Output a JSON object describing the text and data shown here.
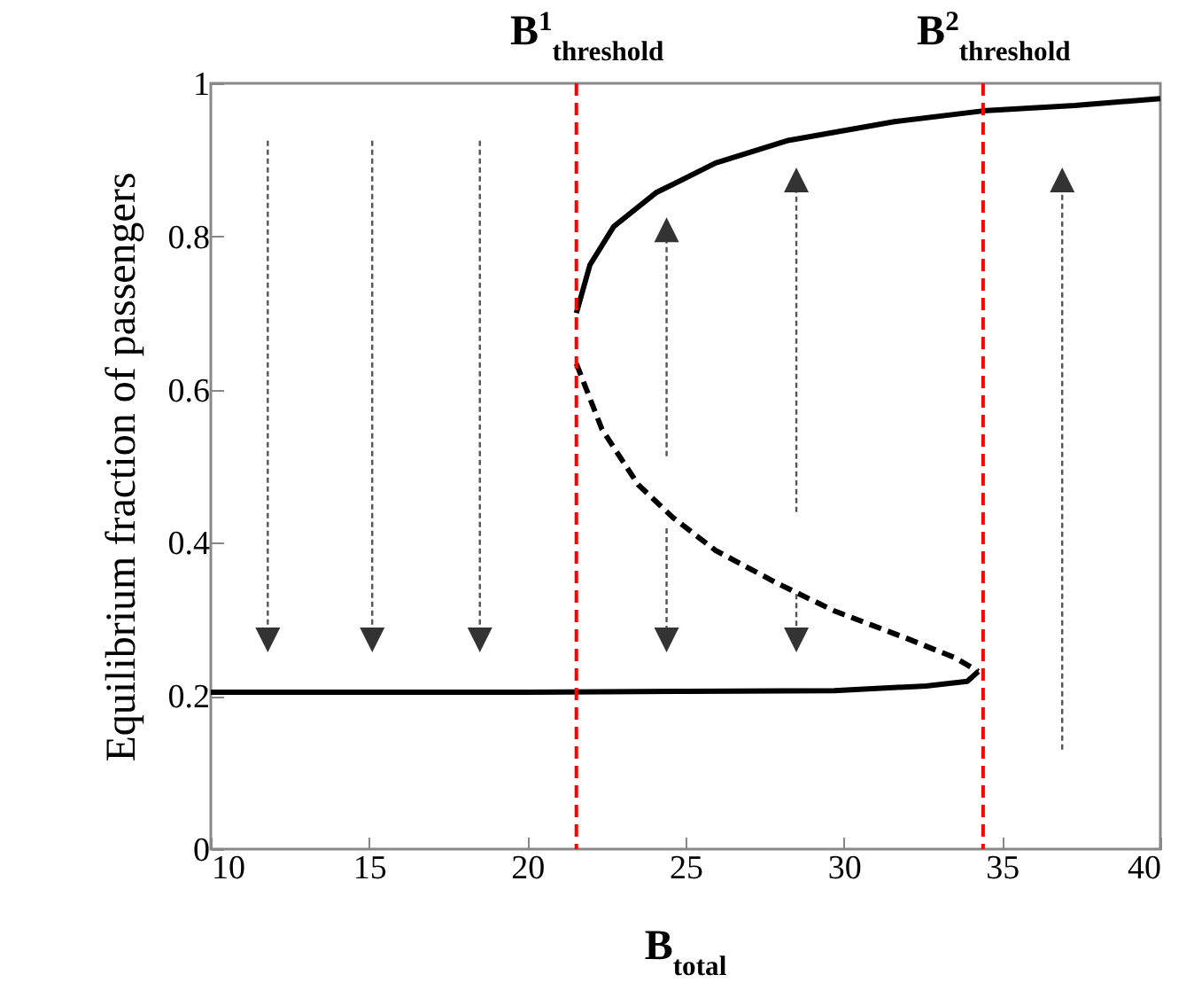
{
  "chart_data": {
    "type": "line",
    "xlabel": "B$_{total}$",
    "ylabel": "Equilibrium fraction of passengers",
    "xlim": [
      10,
      40
    ],
    "xticks": [
      10,
      15,
      20,
      25,
      30,
      35,
      40
    ],
    "ylim": [
      0,
      1
    ],
    "yticks": [
      0,
      0.2,
      0.4,
      0.6,
      0.8,
      1
    ],
    "grid": false,
    "marker": "none",
    "series": [
      {
        "color": "#000000",
        "line_style": "solid",
        "x": [
          21.55,
          21.98,
          22.73,
          24.06,
          25.95,
          28.2,
          31.6,
          34.4,
          37.3,
          40
        ],
        "values": [
          0.7,
          0.763,
          0.813,
          0.857,
          0.896,
          0.925,
          0.95,
          0.964,
          0.971,
          0.98
        ]
      },
      {
        "color": "#000000",
        "line_style": "dashed",
        "x": [
          21.55,
          22.36,
          23.5,
          24.6,
          25.95,
          27.9,
          29.7,
          32.0,
          33.5,
          34.25
        ],
        "values": [
          0.634,
          0.548,
          0.476,
          0.433,
          0.39,
          0.347,
          0.311,
          0.275,
          0.25,
          0.232
        ]
      },
      {
        "color": "#000000",
        "line_style": "solid",
        "x": [
          10,
          15,
          20,
          25,
          29.7,
          32.6,
          33.9,
          34.25
        ],
        "values": [
          0.205,
          0.205,
          0.205,
          0.206,
          0.207,
          0.213,
          0.219,
          0.232
        ]
      }
    ],
    "ref_lines": [
      {
        "axis": "x",
        "value": 21.55,
        "label": "B$^{1}$$_{threshold}$",
        "color": "#ff0000",
        "line_style": "dashed"
      },
      {
        "axis": "x",
        "value": 34.4,
        "label": "B$^{2}$$_{threshold}$",
        "color": "#ff0000",
        "line_style": "dashed"
      }
    ]
  }
}
